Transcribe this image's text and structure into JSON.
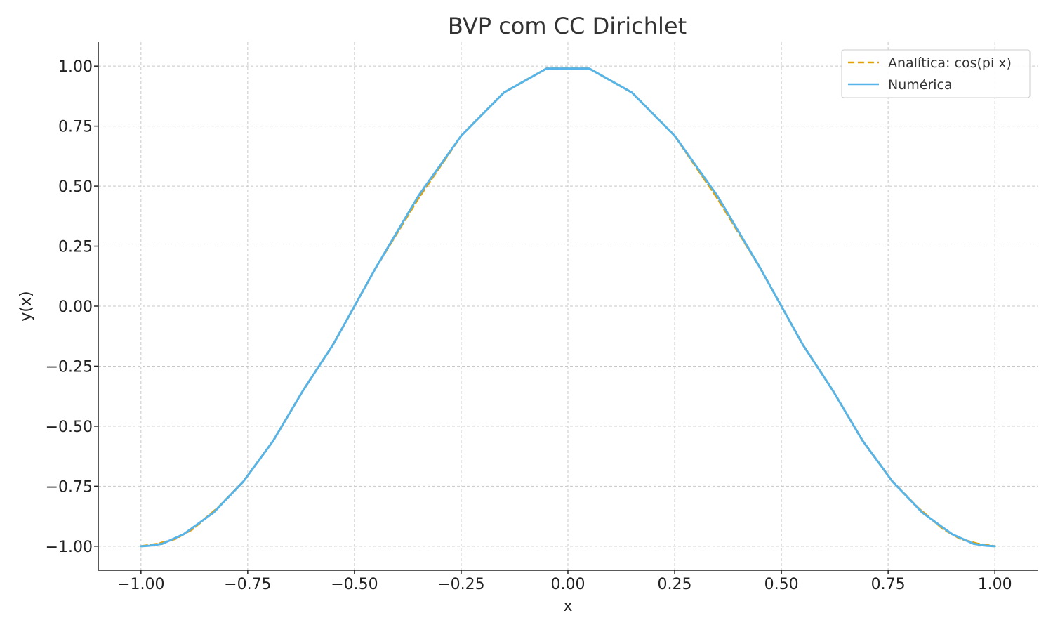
{
  "chart_data": {
    "type": "line",
    "title": "BVP com CC Dirichlet",
    "xlabel": "x",
    "ylabel": "y(x)",
    "xlim": [
      -1.1,
      1.1
    ],
    "ylim": [
      -1.1,
      1.1
    ],
    "grid": true,
    "legend_position": "top-right",
    "xticks": [
      -1.0,
      -0.75,
      -0.5,
      -0.25,
      0.0,
      0.25,
      0.5,
      0.75,
      1.0
    ],
    "xtick_labels": [
      "−1.00",
      "−0.75",
      "−0.50",
      "−0.25",
      "0.00",
      "0.25",
      "0.50",
      "0.75",
      "1.00"
    ],
    "yticks": [
      1.0,
      0.75,
      0.5,
      0.25,
      0.0,
      -0.25,
      -0.5,
      -0.75,
      -1.0
    ],
    "ytick_labels": [
      "1.00",
      "0.75",
      "0.50",
      "0.25",
      "0.00",
      "−0.25",
      "−0.50",
      "−0.75",
      "−1.00"
    ],
    "series": [
      {
        "name": "Analítica: cos(pi x)",
        "color": "#E69F00",
        "style": "dashed",
        "x": [
          -1.0,
          -0.96,
          -0.92,
          -0.88,
          -0.82,
          -0.76,
          -0.69,
          -0.62,
          -0.55,
          -0.5,
          -0.45,
          -0.35,
          -0.25,
          -0.15,
          -0.05,
          0.05,
          0.15,
          0.25,
          0.35,
          0.45,
          0.5,
          0.55,
          0.62,
          0.69,
          0.76,
          0.82,
          0.88,
          0.92,
          0.96,
          1.0
        ],
        "y": [
          -1.0,
          -0.99,
          -0.97,
          -0.93,
          -0.84,
          -0.73,
          -0.56,
          -0.35,
          -0.16,
          0.0,
          0.16,
          0.45,
          0.71,
          0.89,
          0.99,
          0.99,
          0.89,
          0.71,
          0.45,
          0.16,
          0.0,
          -0.16,
          -0.35,
          -0.56,
          -0.73,
          -0.84,
          -0.93,
          -0.97,
          -0.99,
          -1.0
        ]
      },
      {
        "name": "Numérica",
        "color": "#56B4E9",
        "style": "solid",
        "x": [
          -1.0,
          -0.98,
          -0.95,
          -0.9,
          -0.83,
          -0.76,
          -0.69,
          -0.62,
          -0.55,
          -0.5,
          -0.45,
          -0.35,
          -0.25,
          -0.15,
          -0.05,
          0.05,
          0.15,
          0.25,
          0.35,
          0.45,
          0.5,
          0.55,
          0.62,
          0.69,
          0.76,
          0.83,
          0.9,
          0.95,
          0.98,
          1.0
        ],
        "y": [
          -1.0,
          -0.998,
          -0.99,
          -0.95,
          -0.86,
          -0.73,
          -0.56,
          -0.35,
          -0.16,
          0.0,
          0.16,
          0.46,
          0.71,
          0.89,
          0.99,
          0.99,
          0.89,
          0.71,
          0.46,
          0.16,
          0.0,
          -0.16,
          -0.35,
          -0.56,
          -0.73,
          -0.86,
          -0.95,
          -0.99,
          -0.998,
          -1.0
        ]
      }
    ]
  }
}
